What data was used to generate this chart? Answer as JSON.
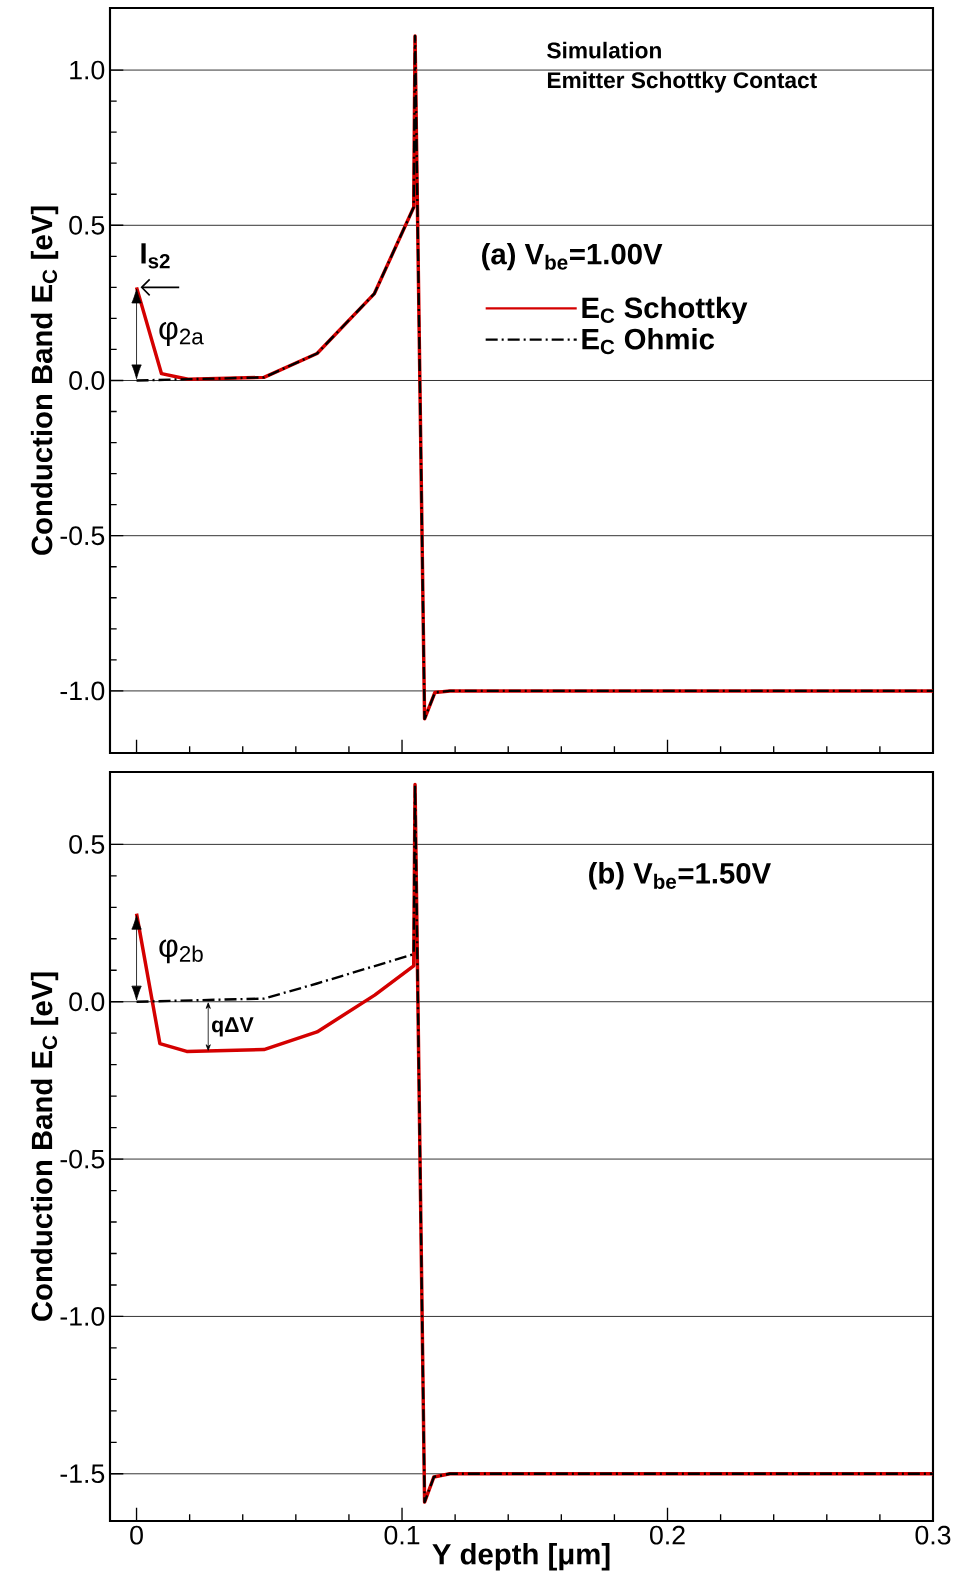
{
  "chart_data": [
    {
      "type": "line",
      "ylabel": "Conduction Band E$_{C}$ [eV]",
      "xlim": [
        -0.01,
        0.3
      ],
      "ylim": [
        -1.2,
        1.2
      ],
      "xticks": [
        0,
        0.1,
        0.2,
        0.3
      ],
      "yticks": [
        {
          "value": -1.0,
          "label": "-1.0"
        },
        {
          "value": -0.5,
          "label": "-0.5"
        },
        {
          "value": 0,
          "label": "0.0"
        },
        {
          "value": 0.5,
          "label": "0.5"
        },
        {
          "value": 1.0,
          "label": "1.0"
        }
      ],
      "grid": "y",
      "legend": "right",
      "tick_labels": "y",
      "annotations": [
        "Simulation",
        "Emitter Schottky Contact",
        "(a) V$_{be}$=1.00V",
        "I$_{s2}$",
        "φ$_{2a}$"
      ],
      "series": [
        {
          "name": "E$_{C}$ Schottky",
          "color": "#d40000",
          "line_style": "solid",
          "x": [
            0,
            0.0094,
            0.0194,
            0.048,
            0.068,
            0.0896,
            0.1044,
            0.1049,
            0.1085,
            0.1124,
            0.118,
            0.3
          ],
          "values": [
            0.3,
            0.022,
            0.004,
            0.01,
            0.087,
            0.28,
            0.558,
            1.11,
            -1.09,
            -1.005,
            -1.0,
            -1.0
          ]
        },
        {
          "name": "E$_{C}$ Ohmic",
          "color": "#000000",
          "line_style": "dashdot",
          "x": [
            0,
            0.048,
            0.068,
            0.0896,
            0.1044,
            0.1049,
            0.1085,
            0.1124,
            0.118,
            0.3
          ],
          "values": [
            0,
            0.01,
            0.087,
            0.28,
            0.558,
            1.11,
            -1.09,
            -1.005,
            -1.0,
            -1.0
          ]
        }
      ]
    },
    {
      "type": "line",
      "xlabel": "Y depth [μm]",
      "ylabel": "Conduction Band E$_{C}$ [eV]",
      "xlim": [
        -0.01,
        0.3
      ],
      "ylim": [
        -1.65,
        0.73
      ],
      "xticks": [
        0,
        0.1,
        0.2,
        0.3
      ],
      "yticks": [
        {
          "value": -1.5,
          "label": "-1.5"
        },
        {
          "value": -1.0,
          "label": "-1.0"
        },
        {
          "value": -0.5,
          "label": "-0.5"
        },
        {
          "value": 0,
          "label": "0.0"
        },
        {
          "value": 0.5,
          "label": "0.5"
        }
      ],
      "grid": "y",
      "annotations": [
        "(b) V$_{be}$=1.50V",
        "φ$_{2b}$",
        "qΔV"
      ],
      "series": [
        {
          "color": "#d40000",
          "line_style": "solid",
          "x": [
            0,
            0.0088,
            0.0189,
            0.048,
            0.068,
            0.0897,
            0.1044,
            0.1049,
            0.1085,
            0.112,
            0.118,
            0.3
          ],
          "values": [
            0.28,
            -0.133,
            -0.158,
            -0.152,
            -0.096,
            0.021,
            0.114,
            0.69,
            -1.59,
            -1.51,
            -1.5,
            -1.5
          ]
        },
        {
          "color": "#000000",
          "line_style": "dashdot",
          "x": [
            0,
            0.048,
            0.068,
            0.1044,
            0.1049,
            0.1085,
            0.112,
            0.118,
            0.3
          ],
          "values": [
            0,
            0.01,
            0.058,
            0.151,
            0.69,
            -1.59,
            -1.51,
            -1.5,
            -1.5
          ]
        }
      ]
    }
  ]
}
